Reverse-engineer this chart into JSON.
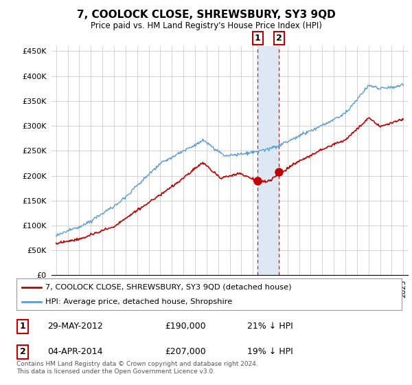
{
  "title": "7, COOLOCK CLOSE, SHREWSBURY, SY3 9QD",
  "subtitle": "Price paid vs. HM Land Registry's House Price Index (HPI)",
  "hpi_label": "HPI: Average price, detached house, Shropshire",
  "property_label": "7, COOLOCK CLOSE, SHREWSBURY, SY3 9QD (detached house)",
  "hpi_color": "#5B9BD5",
  "property_color": "#C00000",
  "shade_color": "#DCE9F5",
  "background_color": "#FFFFFF",
  "grid_color": "#CCCCCC",
  "ylim": [
    0,
    460000
  ],
  "yticks": [
    0,
    50000,
    100000,
    150000,
    200000,
    250000,
    300000,
    350000,
    400000,
    450000
  ],
  "ytick_labels": [
    "£0",
    "£50K",
    "£100K",
    "£150K",
    "£200K",
    "£250K",
    "£300K",
    "£350K",
    "£400K",
    "£450K"
  ],
  "transaction1_x": 2012.42,
  "transaction1_y": 190000,
  "transaction1_label": "1",
  "transaction1_date": "29-MAY-2012",
  "transaction1_price": "£190,000",
  "transaction1_hpi": "21% ↓ HPI",
  "transaction2_x": 2014.25,
  "transaction2_y": 207000,
  "transaction2_label": "2",
  "transaction2_date": "04-APR-2014",
  "transaction2_price": "£207,000",
  "transaction2_hpi": "19% ↓ HPI",
  "footer": "Contains HM Land Registry data © Crown copyright and database right 2024.\nThis data is licensed under the Open Government Licence v3.0.",
  "xmin": 1994.6,
  "xmax": 2025.4
}
